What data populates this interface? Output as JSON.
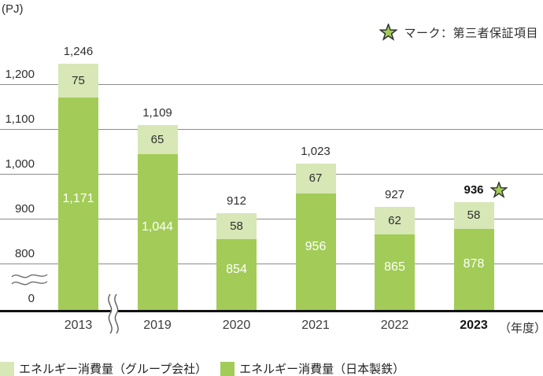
{
  "unit_label": "(PJ)",
  "assurance_note": {
    "icon": "star-icon",
    "text": "マーク：第三者保証項目"
  },
  "chart_data": {
    "type": "bar",
    "stacked": true,
    "title": "エネルギー消費量",
    "ylabel": "(PJ)",
    "xlabel_suffix": "（年度）",
    "categories": [
      "2013",
      "2019",
      "2020",
      "2021",
      "2022",
      "2023"
    ],
    "y_ticks": [
      0,
      800,
      900,
      1000,
      1100,
      1200
    ],
    "y_tick_labels": [
      "0",
      "800",
      "900",
      "1,000",
      "1,100",
      "1,200"
    ],
    "y_axis_break_between": [
      0,
      800
    ],
    "x_axis_break_between": [
      "2013",
      "2019"
    ],
    "grid": true,
    "series": [
      {
        "name": "エネルギー消費量（グループ会社）",
        "color": "#d7e7b6",
        "values": [
          75,
          65,
          58,
          67,
          62,
          58
        ],
        "labels": [
          "75",
          "65",
          "58",
          "67",
          "62",
          "58"
        ]
      },
      {
        "name": "エネルギー消費量（日本製鉄）",
        "color": "#a2cc57",
        "values": [
          1171,
          1044,
          854,
          956,
          865,
          878
        ],
        "labels": [
          "1,171",
          "1,044",
          "854",
          "956",
          "865",
          "878"
        ]
      }
    ],
    "totals": [
      1246,
      1109,
      912,
      1023,
      927,
      936
    ],
    "total_labels": [
      "1,246",
      "1,109",
      "912",
      "1,023",
      "927",
      "936"
    ],
    "assured_index": 5,
    "legend_position": "bottom"
  },
  "colors": {
    "gridline": "#8c8c8c",
    "axis": "#111111",
    "star_fill": "#a2cc57",
    "star_stroke": "#333333",
    "value_text_dark_segment": "#ffffff",
    "value_text_light_segment": "#2f2f2f"
  }
}
